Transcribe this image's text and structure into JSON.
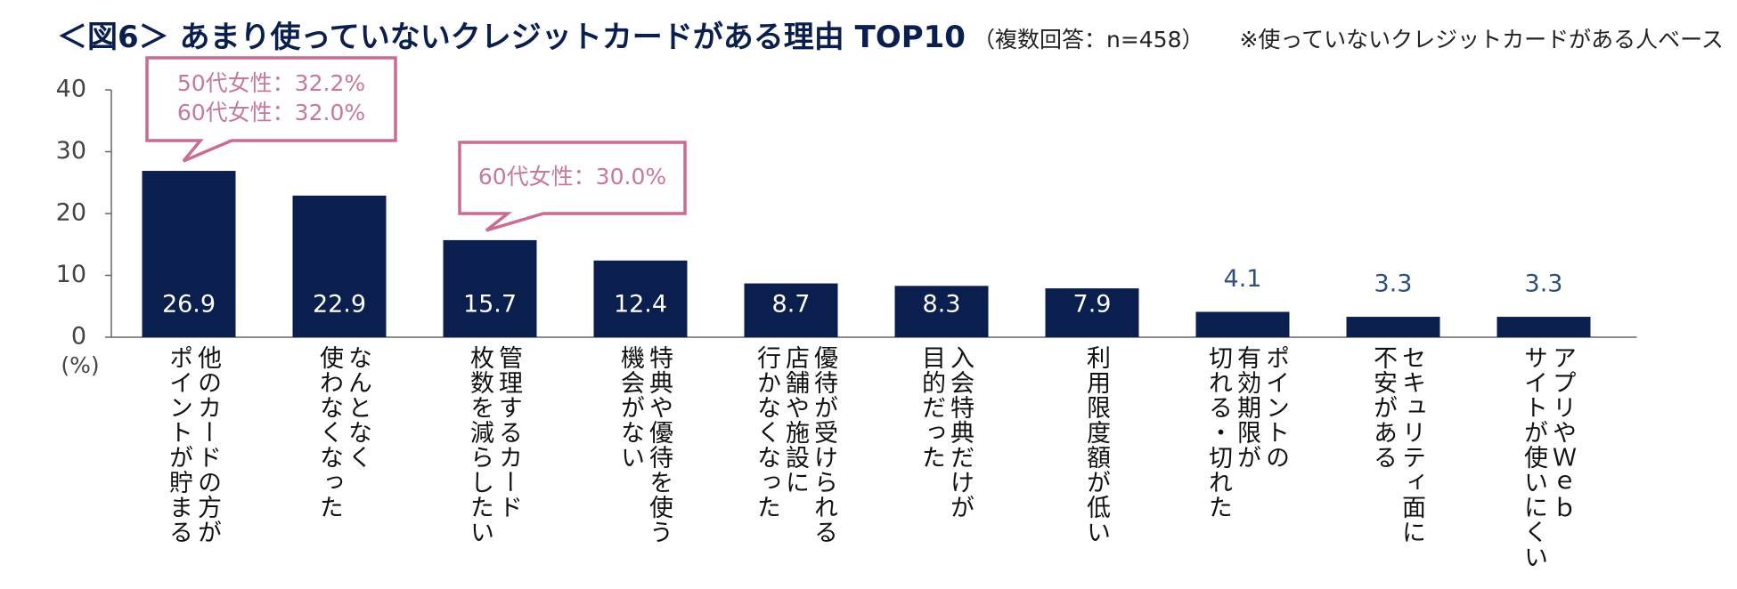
{
  "chart_data": {
    "type": "bar",
    "title": "＜図6＞ あまり使っていないクレジットカードがある理由 TOP10",
    "subtitle": "（複数回答：n=458）",
    "note": "※使っていないクレジットカードがある人ベース",
    "y_label": "(%)",
    "categories": [
      "他のカードの方が\nポイントが貯まる",
      "なんとなく\n使わなくなった",
      "管理するカード\n枚数を減らしたい",
      "特典や優待を使う\n機会がない",
      "優待が受けられる\n店舗や施設に\n行かなくなった",
      "入会特典だけが\n目的だった",
      "利用限度額が低い",
      "ポイントの\n有効期限が\n切れる・切れた",
      "セキュリティ面に\n不安がある",
      "アプリやＷｅｂ\nサイトが使いにくい"
    ],
    "values": [
      26.9,
      22.9,
      15.7,
      12.4,
      8.7,
      8.3,
      7.9,
      4.1,
      3.3,
      3.3
    ],
    "color": "#0b1f4f",
    "ylim": [
      0,
      40
    ],
    "yticks": [
      0,
      10,
      20,
      30,
      40
    ],
    "annotations": [
      {
        "lines": [
          "50代女性：32.2%",
          "60代女性：32.0%"
        ]
      },
      {
        "lines": [
          "60代女性：30.0%"
        ]
      }
    ],
    "annotation_color": "#c96b93"
  }
}
